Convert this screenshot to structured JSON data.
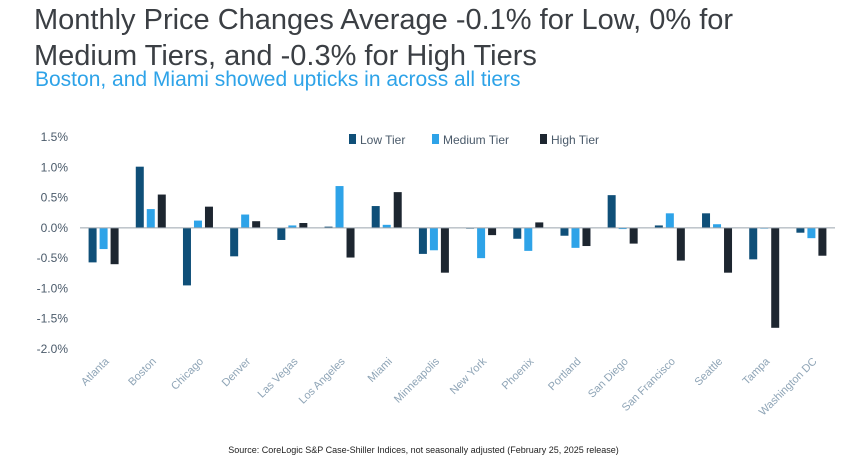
{
  "title": "Monthly Price Changes Average -0.1% for Low, 0% for Medium Tiers, and -0.3% for High Tiers",
  "subtitle": "Boston, and Miami showed upticks in across all tiers",
  "source": "Source: CoreLogic S&P Case-Shiller Indices, not seasonally adjusted (February 25, 2025 release)",
  "colors": {
    "low": "#0f4f78",
    "medium": "#2ea3e8",
    "high": "#1d2630"
  },
  "chart_data": {
    "type": "bar",
    "categories": [
      "Atlanta",
      "Boston",
      "Chicago",
      "Denver",
      "Las Vegas",
      "Los Angeles",
      "Miami",
      "Minneapolis",
      "New York",
      "Phoenix",
      "Portland",
      "San Diego",
      "San Francisco",
      "Seattle",
      "Tampa",
      "Washington DC"
    ],
    "series": [
      {
        "name": "Low Tier",
        "values": [
          -0.57,
          1.01,
          -0.95,
          -0.47,
          -0.2,
          0.02,
          0.36,
          -0.43,
          0.0,
          -0.18,
          -0.13,
          0.54,
          0.04,
          0.24,
          -0.52,
          -0.08
        ]
      },
      {
        "name": "Medium Tier",
        "values": [
          -0.35,
          0.31,
          0.12,
          0.22,
          0.04,
          0.69,
          0.05,
          -0.37,
          -0.5,
          -0.38,
          -0.33,
          -0.02,
          0.24,
          0.06,
          0.0,
          -0.17
        ]
      },
      {
        "name": "High Tier",
        "values": [
          -0.6,
          0.55,
          0.35,
          0.11,
          0.08,
          -0.49,
          0.59,
          -0.74,
          -0.12,
          0.09,
          -0.3,
          -0.26,
          -0.54,
          -0.74,
          -1.65,
          -0.46
        ]
      }
    ],
    "ylim": [
      -2.0,
      1.5
    ],
    "yticks": [
      "1.5%",
      "1.0%",
      "0.5%",
      "0.0%",
      "-0.5%",
      "-1.0%",
      "-1.5%",
      "-2.0%"
    ],
    "ytick_values": [
      1.5,
      1.0,
      0.5,
      0.0,
      -0.5,
      -1.0,
      -1.5,
      -2.0
    ],
    "legend_position": "top-center",
    "grid": false
  }
}
